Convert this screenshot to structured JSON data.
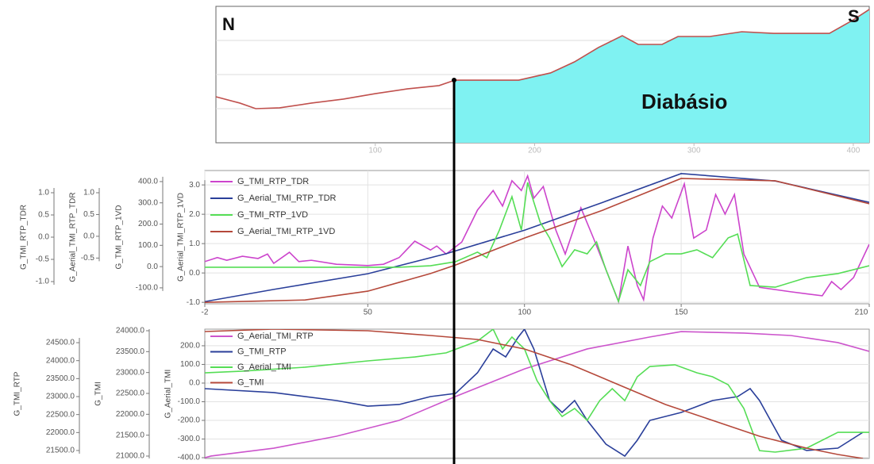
{
  "chart_data": [
    {
      "type": "profile",
      "annotations": [
        "N",
        "S",
        "Diabásio"
      ],
      "xlim": [
        0,
        410
      ],
      "xticks": [
        100,
        200,
        300,
        400
      ],
      "ylim": [
        0,
        100
      ],
      "x": [
        0,
        15,
        25,
        40,
        60,
        80,
        100,
        120,
        140,
        150,
        160,
        190,
        210,
        225,
        240,
        255,
        265,
        280,
        290,
        310,
        330,
        350,
        385,
        400,
        410
      ],
      "values": [
        33.7,
        29.1,
        25.0,
        25.6,
        29.1,
        32.0,
        36.0,
        39.5,
        41.9,
        45.9,
        45.9,
        45.9,
        51.2,
        59.3,
        69.8,
        78.5,
        72.1,
        72.1,
        77.9,
        77.9,
        81.4,
        80.2,
        80.2,
        90.1,
        97.7
      ],
      "color": "#c0504d",
      "fill_color": "#7ff2f2",
      "fill_from_x": 150
    },
    {
      "type": "line",
      "xlim": [
        -2,
        210
      ],
      "xticks": [
        -2,
        50,
        100,
        150,
        210
      ],
      "grid": true,
      "legend": "upper left",
      "yaxes": [
        {
          "title": "G_Aerial_TMI_RTP_1VD",
          "ylim": [
            -1.05,
            3.49
          ],
          "yticks": [
            {
              "value": -1,
              "label": "-1.0"
            },
            {
              "value": 0,
              "label": "0.0"
            },
            {
              "value": 1,
              "label": "1.0"
            },
            {
              "value": 2,
              "label": "2.0"
            },
            {
              "value": 3,
              "label": "3.0"
            }
          ]
        },
        {
          "title": "G_TMI_RTP_1VD",
          "ylim": [
            -175,
            452
          ],
          "yticks": [
            {
              "value": -100,
              "label": "-100.0"
            },
            {
              "value": 0,
              "label": "0.0"
            },
            {
              "value": 100,
              "label": "100.0"
            },
            {
              "value": 200,
              "label": "200.0"
            },
            {
              "value": 300,
              "label": "300.0"
            },
            {
              "value": 400,
              "label": "400.0"
            }
          ]
        },
        {
          "title": "G_Aerial_TMI_RTP_TDR",
          "ylim": [
            -1.55,
            1.51
          ],
          "yticks": [
            -0.5,
            {
              "value": 0,
              "label": "0.0"
            },
            0.5,
            {
              "value": 1,
              "label": "1.0"
            }
          ]
        },
        {
          "title": "G_TMI_RTP_TDR",
          "ylim": [
            -1.5,
            1.5
          ],
          "yticks": [
            {
              "value": -1,
              "label": "-1.0"
            },
            -0.5,
            {
              "value": 0,
              "label": "0.0"
            },
            0.5,
            {
              "value": 1,
              "label": "1.0"
            }
          ]
        }
      ],
      "series": [
        {
          "name": "G_TMI_RTP_TDR",
          "color": "#cc44cc",
          "axis": 3,
          "x": [
            -2,
            2,
            5,
            10,
            15,
            18,
            20,
            25,
            28,
            32,
            40,
            50,
            55,
            60,
            65,
            70,
            72,
            75,
            80,
            85,
            90,
            93,
            96,
            99,
            101,
            103,
            106,
            110,
            113,
            118,
            122,
            126,
            130,
            133,
            136,
            138,
            141,
            144,
            147,
            151,
            154,
            158,
            161,
            164,
            167,
            170,
            175,
            185,
            195,
            198,
            201,
            205,
            210
          ],
          "values": [
            -0.55,
            -0.46,
            -0.52,
            -0.43,
            -0.48,
            -0.38,
            -0.59,
            -0.34,
            -0.55,
            -0.52,
            -0.61,
            -0.64,
            -0.61,
            -0.46,
            -0.09,
            -0.29,
            -0.2,
            -0.38,
            -0.11,
            0.61,
            1.05,
            0.7,
            1.27,
            1.05,
            1.38,
            0.88,
            1.14,
            0.16,
            -0.38,
            0.66,
            -0.02,
            -0.73,
            -1.45,
            -0.2,
            -1.09,
            -1.41,
            -0.02,
            0.7,
            0.43,
            1.2,
            -0.02,
            0.16,
            0.96,
            0.52,
            0.96,
            -0.38,
            -1.13,
            -1.23,
            -1.32,
            -1.0,
            -1.18,
            -0.91,
            -0.16
          ]
        },
        {
          "name": "G_Aerial_TMI_RTP_TDR",
          "color": "#2a3f9a",
          "axis": 2,
          "x": [
            -2,
            20,
            50,
            75,
            100,
            125,
            150,
            180,
            210
          ],
          "values": [
            -1.5,
            -1.22,
            -0.86,
            -0.4,
            0.14,
            0.78,
            1.44,
            1.27,
            0.78
          ]
        },
        {
          "name": "G_TMI_RTP_1VD",
          "color": "#55dd55",
          "axis": 1,
          "x": [
            -2,
            30,
            60,
            70,
            78,
            85,
            88,
            92,
            96,
            99,
            101,
            105,
            108,
            112,
            116,
            120,
            123,
            126,
            130,
            133,
            137,
            140,
            145,
            150,
            155,
            160,
            165,
            168,
            172,
            180,
            190,
            200,
            210
          ],
          "values": [
            -3,
            -3,
            -3,
            4,
            23,
            68,
            42,
            172,
            329,
            172,
            396,
            209,
            135,
            0,
            79,
            60,
            116,
            -15,
            -164,
            -15,
            -89,
            23,
            60,
            60,
            79,
            42,
            135,
            153,
            -89,
            -97,
            -52,
            -33,
            4
          ]
        },
        {
          "name": "G_Aerial_TMI_RTP_1VD",
          "color": "#b5483a",
          "axis": 0,
          "x": [
            -2,
            30,
            50,
            70,
            78,
            100,
            125,
            150,
            180,
            210
          ],
          "values": [
            -1.0,
            -0.92,
            -0.62,
            -0.02,
            0.27,
            1.19,
            2.14,
            3.22,
            3.14,
            2.36
          ]
        }
      ]
    },
    {
      "type": "line",
      "xlim": [
        -2,
        210
      ],
      "grid": true,
      "legend": "upper left",
      "yaxes": [
        {
          "title": "G_Aerial_TMI",
          "ylim": [
            -404,
            289
          ],
          "yticks": [
            {
              "value": -400,
              "label": "-400.0"
            },
            {
              "value": -300,
              "label": "-300.0"
            },
            {
              "value": -200,
              "label": "-200.0"
            },
            {
              "value": -100,
              "label": "-100.0"
            },
            {
              "value": 0,
              "label": "0.0"
            },
            {
              "value": 100,
              "label": "100.0"
            },
            {
              "value": 200,
              "label": "200.0"
            }
          ]
        },
        {
          "title": "G_TMI",
          "ylim": [
            20943,
            24038
          ],
          "yticks": [
            {
              "value": 21000,
              "label": "21000.0"
            },
            {
              "value": 21500,
              "label": "21500.0"
            },
            {
              "value": 22000,
              "label": "22000.0"
            },
            {
              "value": 22500,
              "label": "22500.0"
            },
            {
              "value": 23000,
              "label": "23000.0"
            },
            {
              "value": 23500,
              "label": "23500.0"
            },
            {
              "value": 24000,
              "label": "24000.0"
            }
          ]
        },
        {
          "title": "G_TMI_RTP",
          "ylim": [
            21279,
            24876
          ],
          "yticks": [
            {
              "value": 21500,
              "label": "21500.0"
            },
            {
              "value": 22000,
              "label": "22000.0"
            },
            {
              "value": 22500,
              "label": "22500.0"
            },
            {
              "value": 23000,
              "label": "23000.0"
            },
            {
              "value": 23500,
              "label": "23500.0"
            },
            {
              "value": 24000,
              "label": "24000.0"
            },
            {
              "value": 24500,
              "label": "24500.0"
            }
          ]
        }
      ],
      "series": [
        {
          "name": "G_Aerial_TMI_RTP",
          "color": "#cc55cc",
          "axis": 0,
          "x": [
            -2,
            0,
            20,
            40,
            60,
            78,
            100,
            120,
            140,
            150,
            170,
            185,
            200,
            210
          ],
          "values": [
            -400,
            -391,
            -349,
            -285,
            -200,
            -72,
            76,
            183,
            247,
            276,
            268,
            255,
            217,
            170
          ]
        },
        {
          "name": "G_TMI_RTP",
          "color": "#2a3f9a",
          "axis": 2,
          "x": [
            -2,
            20,
            40,
            50,
            60,
            70,
            78,
            85,
            90,
            94,
            98,
            100,
            103,
            108,
            112,
            116,
            120,
            126,
            132,
            136,
            140,
            150,
            160,
            168,
            172,
            175,
            182,
            190,
            200,
            208
          ],
          "values": [
            23221,
            23111,
            22890,
            22735,
            22780,
            23000,
            23088,
            23662,
            24324,
            24104,
            24655,
            24876,
            24324,
            22890,
            22559,
            22890,
            22338,
            21676,
            21345,
            21787,
            22338,
            22559,
            22890,
            23000,
            23221,
            22890,
            21787,
            21500,
            21566,
            22007
          ]
        },
        {
          "name": "G_Aerial_TMI",
          "color": "#55dd55",
          "axis": 0,
          "x": [
            -2,
            10,
            30,
            50,
            65,
            75,
            85,
            90,
            93,
            96,
            100,
            104,
            108,
            112,
            116,
            120,
            124,
            128,
            132,
            136,
            140,
            148,
            155,
            160,
            165,
            170,
            175,
            180,
            190,
            200,
            210
          ],
          "values": [
            55,
            64,
            85,
            119,
            140,
            162,
            225,
            289,
            183,
            247,
            183,
            13,
            -94,
            -179,
            -136,
            -200,
            -94,
            -30,
            -94,
            34,
            89,
            98,
            55,
            34,
            -9,
            -136,
            -362,
            -370,
            -349,
            -264,
            -264
          ]
        },
        {
          "name": "G_TMI",
          "color": "#b5483a",
          "axis": 1,
          "x": [
            -2,
            20,
            50,
            70,
            85,
            100,
            115,
            130,
            145,
            160,
            175,
            190,
            200,
            208
          ],
          "values": [
            23981,
            24038,
            24000,
            23886,
            23791,
            23563,
            23184,
            22709,
            22234,
            21854,
            21475,
            21190,
            21038,
            20943
          ]
        }
      ]
    }
  ]
}
